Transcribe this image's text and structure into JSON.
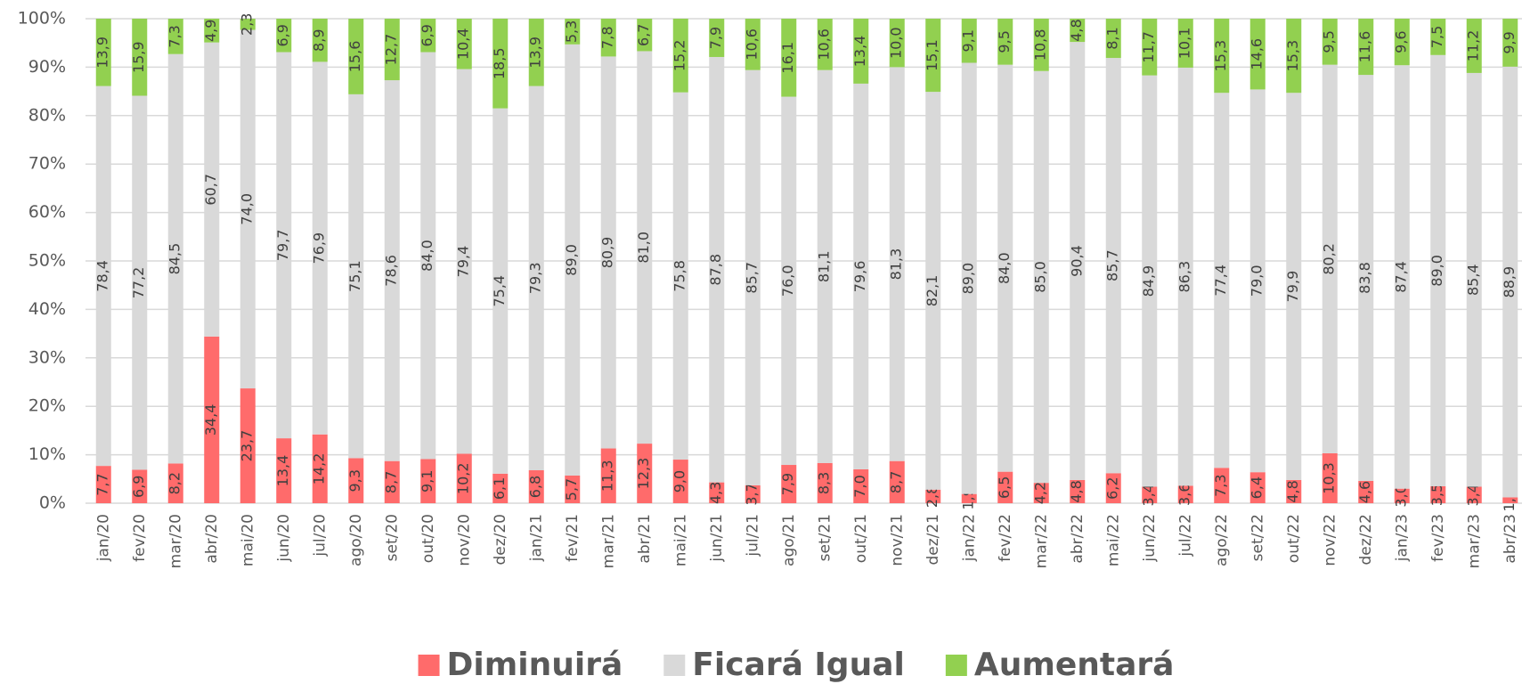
{
  "chart_data": {
    "type": "stacked-bar-100",
    "categories": [
      "jan/20",
      "fev/20",
      "mar/20",
      "abr/20",
      "mai/20",
      "jun/20",
      "jul/20",
      "ago/20",
      "set/20",
      "out/20",
      "nov/20",
      "dez/20",
      "jan/21",
      "fev/21",
      "mar/21",
      "abr/21",
      "mai/21",
      "jun/21",
      "jul/21",
      "ago/21",
      "set/21",
      "out/21",
      "nov/21",
      "dez/21",
      "jan/22",
      "fev/22",
      "mar/22",
      "abr/22",
      "mai/22",
      "jun/22",
      "jul/22",
      "ago/22",
      "set/22",
      "out/22",
      "nov/22",
      "dez/22",
      "jan/23",
      "fev/23",
      "mar/23",
      "abr/23"
    ],
    "series": [
      {
        "name": "Diminuirá",
        "color": "#ff6b6b",
        "values": [
          7.7,
          6.9,
          8.2,
          34.4,
          23.7,
          13.4,
          14.2,
          9.3,
          8.7,
          9.1,
          10.2,
          6.1,
          6.8,
          5.7,
          11.3,
          12.3,
          9.0,
          4.3,
          3.7,
          7.9,
          8.3,
          7.0,
          8.7,
          2.8,
          1.9,
          6.5,
          4.2,
          4.8,
          6.2,
          3.4,
          3.6,
          7.3,
          6.4,
          4.8,
          10.3,
          4.6,
          3.0,
          3.5,
          3.4,
          1.2
        ],
        "value_labels": [
          "7,7",
          "6,9",
          "8,2",
          "34,4",
          "23,7",
          "13,4",
          "14,2",
          "9,3",
          "8,7",
          "9,1",
          "10,2",
          "6,1",
          "6,8",
          "5,7",
          "11,3",
          "12,3",
          "9,0",
          "4,3",
          "3,7",
          "7,9",
          "8,3",
          "7,0",
          "8,7",
          "2,8",
          "1,9",
          "6,5",
          "4,2",
          "4,8",
          "6,2",
          "3,4",
          "3,6",
          "7,3",
          "6,4",
          "4,8",
          "10,3",
          "4,6",
          "3,0",
          "3,5",
          "3,4",
          "1,2"
        ]
      },
      {
        "name": "Ficará Igual",
        "color": "#d9d9d9",
        "values": [
          78.4,
          77.2,
          84.5,
          60.7,
          74.0,
          79.7,
          76.9,
          75.1,
          78.6,
          84.0,
          79.4,
          75.4,
          79.3,
          89.0,
          80.9,
          81.0,
          75.8,
          87.8,
          85.7,
          76.0,
          81.1,
          79.6,
          81.3,
          82.1,
          89.0,
          84.0,
          85.0,
          90.4,
          85.7,
          84.9,
          86.3,
          77.4,
          79.0,
          79.9,
          80.2,
          83.8,
          87.4,
          89.0,
          85.4,
          88.9
        ],
        "value_labels": [
          "78,4",
          "77,2",
          "84,5",
          "60,7",
          "74,0",
          "79,7",
          "76,9",
          "75,1",
          "78,6",
          "84,0",
          "79,4",
          "75,4",
          "79,3",
          "89,0",
          "80,9",
          "81,0",
          "75,8",
          "87,8",
          "85,7",
          "76,0",
          "81,1",
          "79,6",
          "81,3",
          "82,1",
          "89,0",
          "84,0",
          "85,0",
          "90,4",
          "85,7",
          "84,9",
          "86,3",
          "77,4",
          "79,0",
          "79,9",
          "80,2",
          "83,8",
          "87,4",
          "89,0",
          "85,4",
          "88,9"
        ]
      },
      {
        "name": "Aumentará",
        "color": "#92d050",
        "values": [
          13.9,
          15.9,
          7.3,
          4.9,
          2.3,
          6.9,
          8.9,
          15.6,
          12.7,
          6.9,
          10.4,
          18.5,
          13.9,
          5.3,
          7.8,
          6.7,
          15.2,
          7.9,
          10.6,
          16.1,
          10.6,
          13.4,
          10.0,
          15.1,
          9.1,
          9.5,
          10.8,
          4.8,
          8.1,
          11.7,
          10.1,
          15.3,
          14.6,
          15.3,
          9.5,
          11.6,
          9.6,
          7.5,
          11.2,
          9.9
        ],
        "value_labels": [
          "13,9",
          "15,9",
          "7,3",
          "4,9",
          "2,3",
          "6,9",
          "8,9",
          "15,6",
          "12,7",
          "6,9",
          "10,4",
          "18,5",
          "13,9",
          "5,3",
          "7,8",
          "6,7",
          "15,2",
          "7,9",
          "10,6",
          "16,1",
          "10,6",
          "13,4",
          "10,0",
          "15,1",
          "9,1",
          "9,5",
          "10,8",
          "4,8",
          "8,1",
          "11,7",
          "10,1",
          "15,3",
          "14,6",
          "15,3",
          "9,5",
          "11,6",
          "9,6",
          "7,5",
          "11,2",
          "9,9"
        ]
      }
    ],
    "ylim": [
      0,
      100
    ],
    "yticks": [
      {
        "value": 0,
        "label": "0%"
      },
      {
        "value": 10,
        "label": "10%"
      },
      {
        "value": 20,
        "label": "20%"
      },
      {
        "value": 30,
        "label": "30%"
      },
      {
        "value": 40,
        "label": "40%"
      },
      {
        "value": 50,
        "label": "50%"
      },
      {
        "value": 60,
        "label": "60%"
      },
      {
        "value": 70,
        "label": "70%"
      },
      {
        "value": 80,
        "label": "80%"
      },
      {
        "value": 90,
        "label": "90%"
      },
      {
        "value": 100,
        "label": "100%"
      }
    ],
    "grid": true,
    "legend": "bottom"
  }
}
